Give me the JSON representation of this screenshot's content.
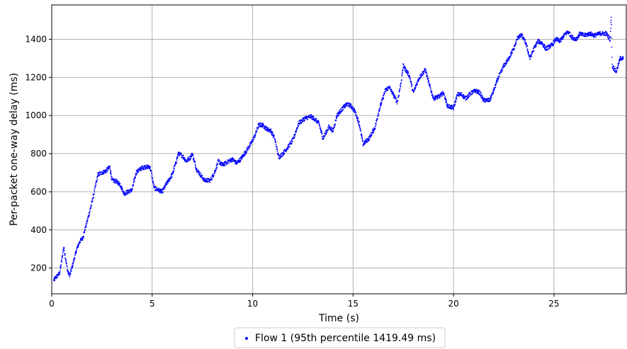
{
  "chart_data": {
    "type": "scatter",
    "title": "",
    "xlabel": "Time (s)",
    "ylabel": "Per-packet one-way delay (ms)",
    "xlim": [
      0,
      28.6
    ],
    "ylim": [
      65,
      1580
    ],
    "xticks": [
      0,
      5,
      10,
      15,
      20,
      25
    ],
    "yticks": [
      200,
      400,
      600,
      800,
      1000,
      1200,
      1400
    ],
    "grid": true,
    "legend_position": "bottom-center",
    "series": [
      {
        "name": "Flow 1 (95th percentile 1419.49 ms)",
        "color": "#0000ff",
        "marker": "dot",
        "profile_points": [
          [
            0.1,
            135
          ],
          [
            0.2,
            150
          ],
          [
            0.4,
            175
          ],
          [
            0.6,
            310
          ],
          [
            0.8,
            180
          ],
          [
            0.9,
            160
          ],
          [
            1.0,
            200
          ],
          [
            1.1,
            240
          ],
          [
            1.25,
            300
          ],
          [
            1.4,
            340
          ],
          [
            1.55,
            360
          ],
          [
            1.7,
            420
          ],
          [
            1.9,
            500
          ],
          [
            2.1,
            590
          ],
          [
            2.3,
            690
          ],
          [
            2.5,
            700
          ],
          [
            2.7,
            710
          ],
          [
            2.9,
            730
          ],
          [
            3.0,
            660
          ],
          [
            3.2,
            655
          ],
          [
            3.4,
            640
          ],
          [
            3.6,
            590
          ],
          [
            3.8,
            600
          ],
          [
            4.0,
            610
          ],
          [
            4.2,
            700
          ],
          [
            4.4,
            720
          ],
          [
            4.6,
            730
          ],
          [
            4.9,
            730
          ],
          [
            5.1,
            620
          ],
          [
            5.3,
            610
          ],
          [
            5.5,
            600
          ],
          [
            5.7,
            640
          ],
          [
            6.0,
            690
          ],
          [
            6.2,
            760
          ],
          [
            6.3,
            800
          ],
          [
            6.5,
            790
          ],
          [
            6.7,
            760
          ],
          [
            6.9,
            780
          ],
          [
            7.0,
            800
          ],
          [
            7.2,
            720
          ],
          [
            7.4,
            690
          ],
          [
            7.6,
            660
          ],
          [
            7.9,
            660
          ],
          [
            8.1,
            700
          ],
          [
            8.3,
            760
          ],
          [
            8.5,
            740
          ],
          [
            8.8,
            760
          ],
          [
            9.0,
            770
          ],
          [
            9.2,
            750
          ],
          [
            9.4,
            770
          ],
          [
            9.6,
            800
          ],
          [
            9.9,
            850
          ],
          [
            10.1,
            890
          ],
          [
            10.3,
            950
          ],
          [
            10.5,
            950
          ],
          [
            10.7,
            930
          ],
          [
            10.9,
            920
          ],
          [
            11.1,
            880
          ],
          [
            11.3,
            780
          ],
          [
            11.5,
            800
          ],
          [
            11.8,
            840
          ],
          [
            12.0,
            870
          ],
          [
            12.3,
            960
          ],
          [
            12.6,
            985
          ],
          [
            12.9,
            995
          ],
          [
            13.1,
            980
          ],
          [
            13.3,
            960
          ],
          [
            13.5,
            880
          ],
          [
            13.8,
            940
          ],
          [
            14.0,
            920
          ],
          [
            14.2,
            1000
          ],
          [
            14.5,
            1040
          ],
          [
            14.7,
            1060
          ],
          [
            14.9,
            1050
          ],
          [
            15.1,
            1020
          ],
          [
            15.3,
            960
          ],
          [
            15.5,
            850
          ],
          [
            15.8,
            880
          ],
          [
            16.1,
            940
          ],
          [
            16.3,
            1030
          ],
          [
            16.6,
            1130
          ],
          [
            16.8,
            1150
          ],
          [
            17.0,
            1110
          ],
          [
            17.2,
            1070
          ],
          [
            17.4,
            1180
          ],
          [
            17.5,
            1260
          ],
          [
            17.8,
            1210
          ],
          [
            18.0,
            1120
          ],
          [
            18.3,
            1200
          ],
          [
            18.6,
            1240
          ],
          [
            18.8,
            1160
          ],
          [
            19.0,
            1090
          ],
          [
            19.3,
            1100
          ],
          [
            19.5,
            1120
          ],
          [
            19.7,
            1050
          ],
          [
            20.0,
            1040
          ],
          [
            20.2,
            1110
          ],
          [
            20.4,
            1110
          ],
          [
            20.6,
            1090
          ],
          [
            20.9,
            1120
          ],
          [
            21.1,
            1130
          ],
          [
            21.3,
            1120
          ],
          [
            21.5,
            1080
          ],
          [
            21.8,
            1080
          ],
          [
            22.0,
            1130
          ],
          [
            22.2,
            1190
          ],
          [
            22.5,
            1260
          ],
          [
            22.7,
            1290
          ],
          [
            23.0,
            1350
          ],
          [
            23.2,
            1410
          ],
          [
            23.4,
            1420
          ],
          [
            23.6,
            1380
          ],
          [
            23.8,
            1300
          ],
          [
            24.0,
            1350
          ],
          [
            24.2,
            1390
          ],
          [
            24.4,
            1380
          ],
          [
            24.6,
            1350
          ],
          [
            24.9,
            1370
          ],
          [
            25.1,
            1400
          ],
          [
            25.3,
            1390
          ],
          [
            25.5,
            1420
          ],
          [
            25.7,
            1440
          ],
          [
            25.9,
            1410
          ],
          [
            26.1,
            1400
          ],
          [
            26.3,
            1430
          ],
          [
            26.5,
            1420
          ],
          [
            26.8,
            1430
          ],
          [
            27.0,
            1420
          ],
          [
            27.3,
            1430
          ],
          [
            27.6,
            1430
          ],
          [
            27.8,
            1400
          ],
          [
            27.85,
            1520
          ],
          [
            27.9,
            1260
          ],
          [
            28.1,
            1230
          ],
          [
            28.3,
            1300
          ],
          [
            28.45,
            1300
          ]
        ]
      }
    ]
  }
}
